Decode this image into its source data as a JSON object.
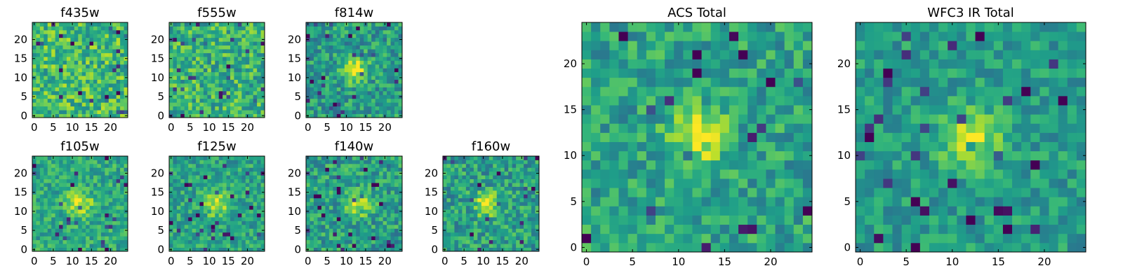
{
  "figure": {
    "colormap": "viridis"
  },
  "chart_data": [
    {
      "type": "heatmap",
      "title": "f435w",
      "grid_size": 25,
      "xlim": [
        0,
        24
      ],
      "ylim": [
        0,
        24
      ],
      "xticks": [
        "0",
        "5",
        "10",
        "15",
        "20"
      ],
      "yticks": [
        "0",
        "5",
        "10",
        "15",
        "20"
      ],
      "source_center": null,
      "source_strength": 0.0,
      "mean_level": 0.68,
      "noise": 0.22
    },
    {
      "type": "heatmap",
      "title": "f555w",
      "grid_size": 25,
      "xlim": [
        0,
        24
      ],
      "ylim": [
        0,
        24
      ],
      "xticks": [
        "0",
        "5",
        "10",
        "15",
        "20"
      ],
      "yticks": [
        "0",
        "5",
        "10",
        "15",
        "20"
      ],
      "source_center": null,
      "source_strength": 0.0,
      "mean_level": 0.64,
      "noise": 0.22
    },
    {
      "type": "heatmap",
      "title": "f814w",
      "grid_size": 25,
      "xlim": [
        0,
        24
      ],
      "ylim": [
        0,
        24
      ],
      "xticks": [
        "0",
        "5",
        "10",
        "15",
        "20"
      ],
      "yticks": [
        "0",
        "5",
        "10",
        "15",
        "20"
      ],
      "source_center": [
        12,
        12
      ],
      "source_strength": 0.45,
      "mean_level": 0.55,
      "noise": 0.2
    },
    {
      "type": "heatmap",
      "title": "f105w",
      "grid_size": 25,
      "xlim": [
        0,
        24
      ],
      "ylim": [
        0,
        24
      ],
      "xticks": [
        "0",
        "5",
        "10",
        "15",
        "20"
      ],
      "yticks": [
        "0",
        "5",
        "10",
        "15",
        "20"
      ],
      "source_center": [
        12,
        12
      ],
      "source_strength": 0.4,
      "mean_level": 0.6,
      "noise": 0.17
    },
    {
      "type": "heatmap",
      "title": "f125w",
      "grid_size": 25,
      "xlim": [
        0,
        24
      ],
      "ylim": [
        0,
        24
      ],
      "xticks": [
        "0",
        "5",
        "10",
        "15",
        "20"
      ],
      "yticks": [
        "0",
        "5",
        "10",
        "15",
        "20"
      ],
      "source_center": [
        12,
        12
      ],
      "source_strength": 0.35,
      "mean_level": 0.58,
      "noise": 0.17
    },
    {
      "type": "heatmap",
      "title": "f140w",
      "grid_size": 25,
      "xlim": [
        0,
        24
      ],
      "ylim": [
        0,
        24
      ],
      "xticks": [
        "0",
        "5",
        "10",
        "15",
        "20"
      ],
      "yticks": [
        "0",
        "5",
        "10",
        "15",
        "20"
      ],
      "source_center": [
        13,
        12
      ],
      "source_strength": 0.35,
      "mean_level": 0.56,
      "noise": 0.2
    },
    {
      "type": "heatmap",
      "title": "f160w",
      "grid_size": 25,
      "xlim": [
        0,
        24
      ],
      "ylim": [
        0,
        24
      ],
      "xticks": [
        "0",
        "5",
        "10",
        "15",
        "20"
      ],
      "yticks": [
        "0",
        "5",
        "10",
        "15",
        "20"
      ],
      "source_center": [
        11,
        12
      ],
      "source_strength": 0.4,
      "mean_level": 0.56,
      "noise": 0.2
    },
    {
      "type": "heatmap",
      "title": "ACS Total",
      "grid_size": 25,
      "xlim": [
        0,
        24
      ],
      "ylim": [
        0,
        24
      ],
      "xticks": [
        "0",
        "5",
        "10",
        "15",
        "20"
      ],
      "yticks": [
        "0",
        "5",
        "10",
        "15",
        "20"
      ],
      "source_center": [
        12,
        12
      ],
      "source_strength": 0.38,
      "mean_level": 0.58,
      "noise": 0.18
    },
    {
      "type": "heatmap",
      "title": "WFC3 IR Total",
      "grid_size": 25,
      "xlim": [
        0,
        24
      ],
      "ylim": [
        0,
        24
      ],
      "xticks": [
        "0",
        "5",
        "10",
        "15",
        "20"
      ],
      "yticks": [
        "0",
        "5",
        "10",
        "15",
        "20"
      ],
      "source_center": [
        12,
        12
      ],
      "source_strength": 0.4,
      "mean_level": 0.55,
      "noise": 0.15
    }
  ]
}
